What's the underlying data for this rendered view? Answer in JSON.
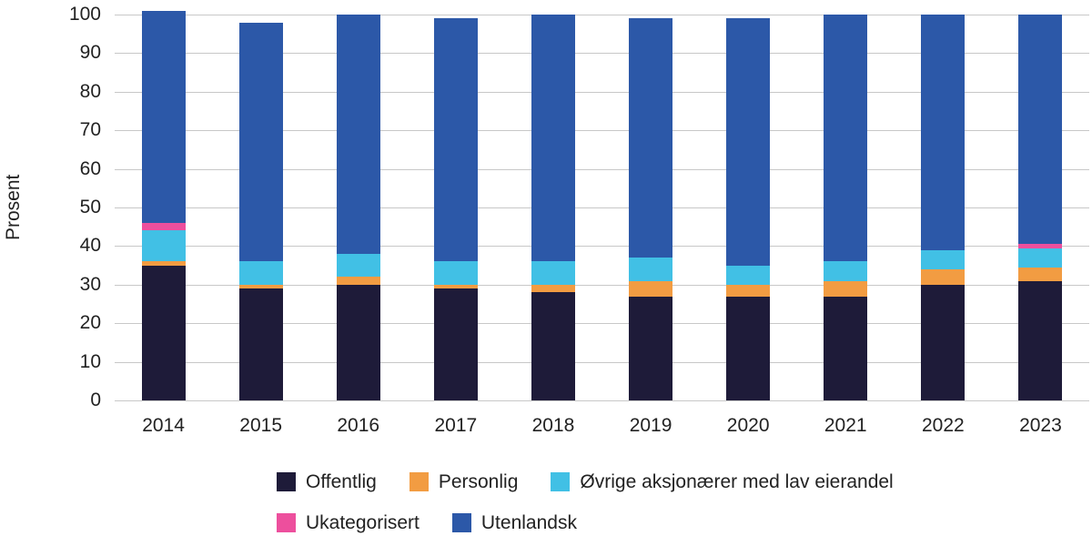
{
  "style": {
    "background": "#ffffff",
    "gridline_color": "#c8c8c8",
    "text_color": "#222222"
  },
  "chart_data": {
    "type": "bar",
    "stacked": true,
    "orientation": "vertical",
    "title": "",
    "xlabel": "",
    "ylabel": "Prosent",
    "ylim": [
      0,
      100
    ],
    "ytick_step": 10,
    "ytick_labels": [
      "0",
      "10",
      "20",
      "30",
      "40",
      "50",
      "60",
      "70",
      "80",
      "90",
      "100"
    ],
    "grid": "horizontal",
    "legend_position": "bottom",
    "categories": [
      "2014",
      "2015",
      "2016",
      "2017",
      "2018",
      "2019",
      "2020",
      "2021",
      "2022",
      "2023"
    ],
    "series": [
      {
        "name": "Offentlig",
        "color": "#1e1b39",
        "values": [
          35,
          29,
          30,
          29,
          28,
          27,
          27,
          27,
          30,
          31
        ]
      },
      {
        "name": "Personlig",
        "color": "#f29c42",
        "values": [
          1,
          1,
          2,
          1,
          2,
          4,
          3,
          4,
          4,
          3.5
        ]
      },
      {
        "name": "Øvrige aksjonærer med lav eierandel",
        "color": "#41c0e5",
        "values": [
          8,
          6,
          6,
          6,
          6,
          6,
          5,
          5,
          5,
          5
        ]
      },
      {
        "name": "Ukategorisert",
        "color": "#ed4f9d",
        "values": [
          2,
          0,
          0,
          0,
          0,
          0,
          0,
          0,
          0,
          1
        ]
      },
      {
        "name": "Utenlandsk",
        "color": "#2c58a8",
        "values": [
          55,
          62,
          62,
          63,
          64,
          62,
          64,
          64,
          61,
          59.5
        ]
      }
    ],
    "stack_totals": [
      101,
      98,
      100,
      99,
      100,
      99,
      99,
      100,
      100,
      100
    ]
  }
}
